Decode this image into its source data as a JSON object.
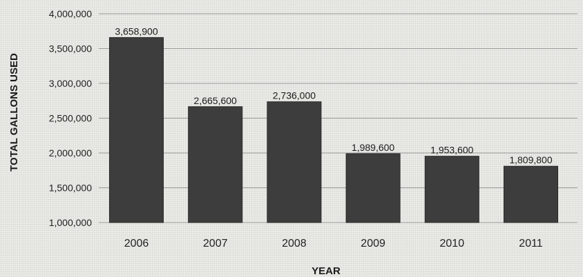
{
  "chart_data": {
    "type": "bar",
    "title": "",
    "xlabel": "YEAR",
    "ylabel": "TOTAL GALLONS USED",
    "categories": [
      "2006",
      "2007",
      "2008",
      "2009",
      "2010",
      "2011"
    ],
    "values": [
      3658900,
      2665600,
      2736000,
      1989600,
      1953600,
      1809800
    ],
    "value_labels": [
      "3,658,900",
      "2,665,600",
      "2,736,000",
      "1,989,600",
      "1,953,600",
      "1,809,800"
    ],
    "ylim": [
      1000000,
      4000000
    ],
    "yticks": [
      1000000,
      1500000,
      2000000,
      2500000,
      3000000,
      3500000,
      4000000
    ],
    "ytick_labels": [
      "1,000,000",
      "1,500,000",
      "2,000,000",
      "2,500,000",
      "3,000,000",
      "3,500,000",
      "4,000,000"
    ],
    "grid": true,
    "legend": "none",
    "colors": {
      "bar": "#3d3d3d",
      "bar_edge": "#2a2a2a",
      "gridline": "#9a9a9a",
      "text": "#1a1a1a"
    }
  }
}
